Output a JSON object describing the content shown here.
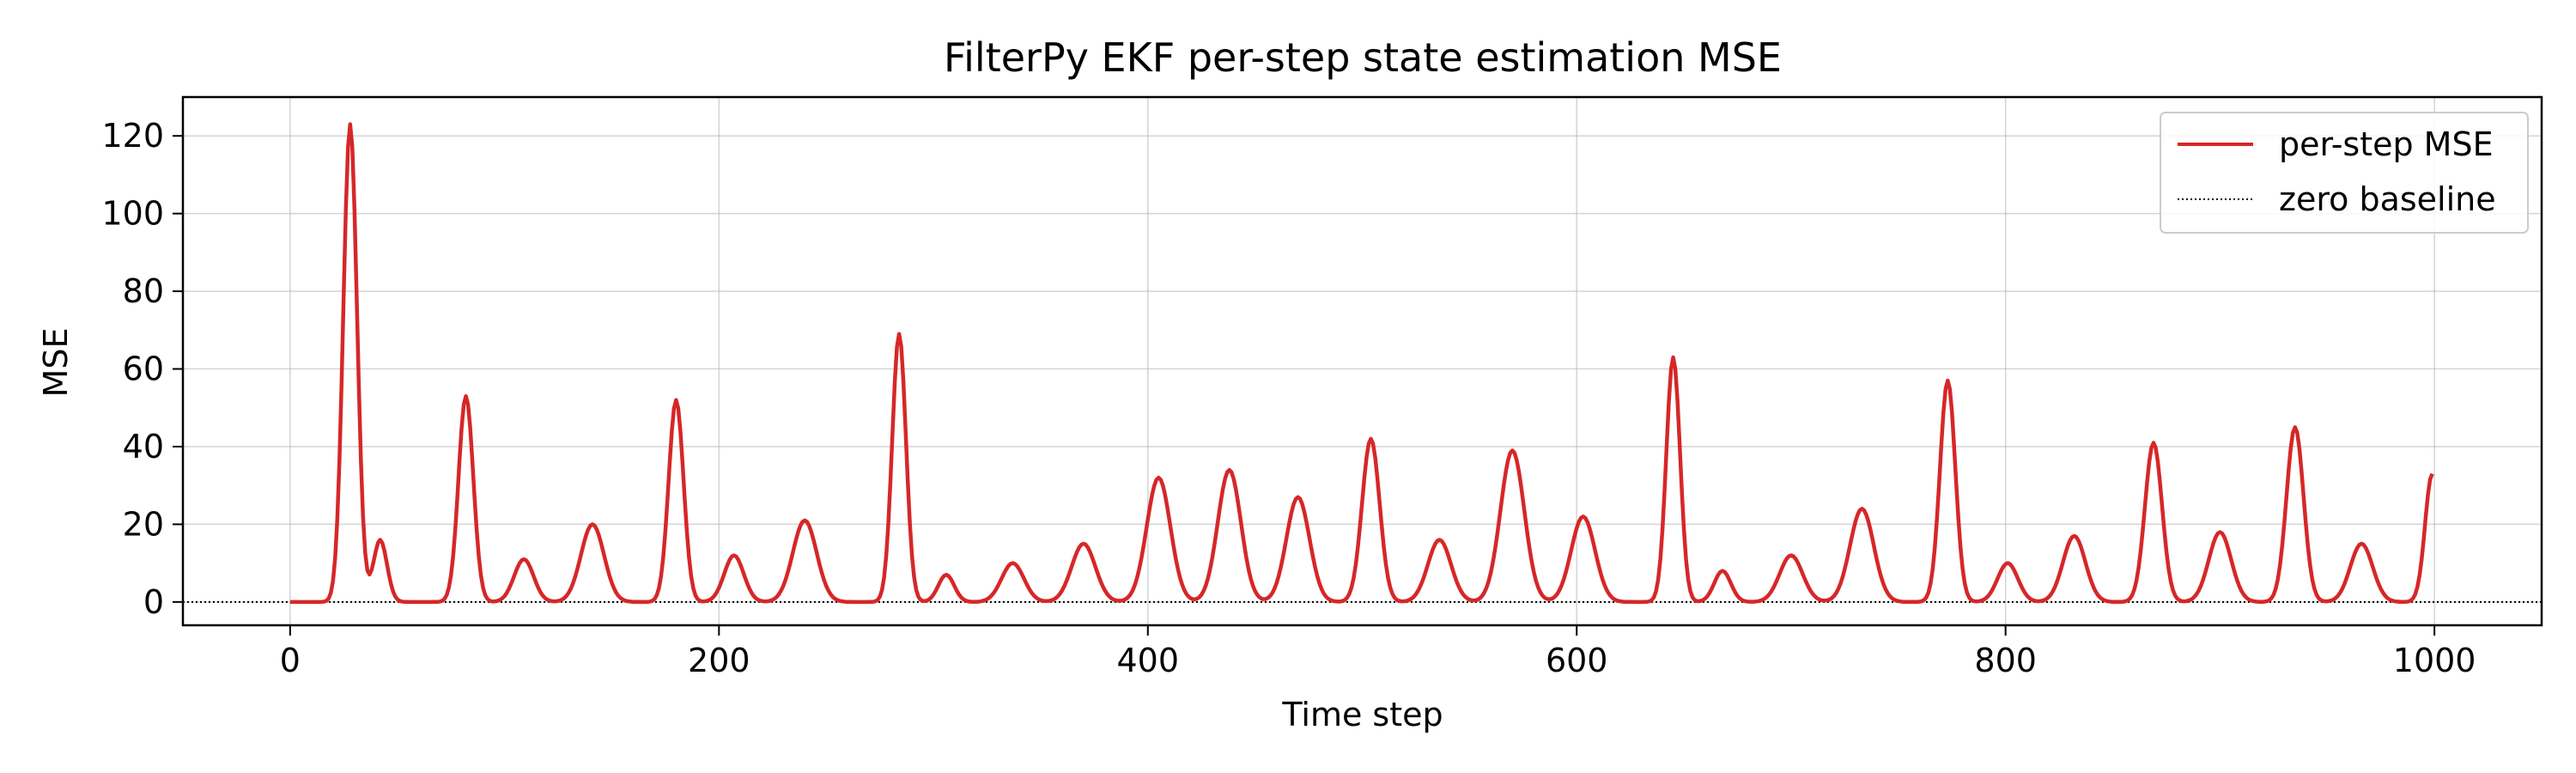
{
  "chart_data": {
    "type": "line",
    "title": "FilterPy EKF per-step state estimation MSE",
    "xlabel": "Time step",
    "ylabel": "MSE",
    "xlim": [
      -50,
      1050
    ],
    "ylim": [
      -6,
      130
    ],
    "xticks": [
      0,
      200,
      400,
      600,
      800,
      1000
    ],
    "yticks": [
      0,
      20,
      40,
      60,
      80,
      100,
      120
    ],
    "grid": true,
    "legend_position": "top-right",
    "series": [
      {
        "name": "per-step MSE",
        "color": "#d62728",
        "style": "solid",
        "peaks": [
          {
            "x": 28,
            "y": 123
          },
          {
            "x": 42,
            "y": 16
          },
          {
            "x": 82,
            "y": 53
          },
          {
            "x": 109,
            "y": 11
          },
          {
            "x": 141,
            "y": 20
          },
          {
            "x": 180,
            "y": 52
          },
          {
            "x": 207,
            "y": 12
          },
          {
            "x": 240,
            "y": 21
          },
          {
            "x": 284,
            "y": 69
          },
          {
            "x": 306,
            "y": 7
          },
          {
            "x": 337,
            "y": 10
          },
          {
            "x": 370,
            "y": 15
          },
          {
            "x": 405,
            "y": 32
          },
          {
            "x": 438,
            "y": 34
          },
          {
            "x": 470,
            "y": 27
          },
          {
            "x": 504,
            "y": 42
          },
          {
            "x": 536,
            "y": 16
          },
          {
            "x": 570,
            "y": 39
          },
          {
            "x": 603,
            "y": 22
          },
          {
            "x": 645,
            "y": 63
          },
          {
            "x": 668,
            "y": 8
          },
          {
            "x": 700,
            "y": 12
          },
          {
            "x": 733,
            "y": 24
          },
          {
            "x": 773,
            "y": 57
          },
          {
            "x": 801,
            "y": 10
          },
          {
            "x": 832,
            "y": 17
          },
          {
            "x": 869,
            "y": 41
          },
          {
            "x": 900,
            "y": 18
          },
          {
            "x": 935,
            "y": 45
          },
          {
            "x": 966,
            "y": 15
          },
          {
            "x": 999,
            "y": 33
          }
        ]
      },
      {
        "name": "zero baseline",
        "color": "#000000",
        "style": "dotted",
        "value": 0
      }
    ]
  }
}
